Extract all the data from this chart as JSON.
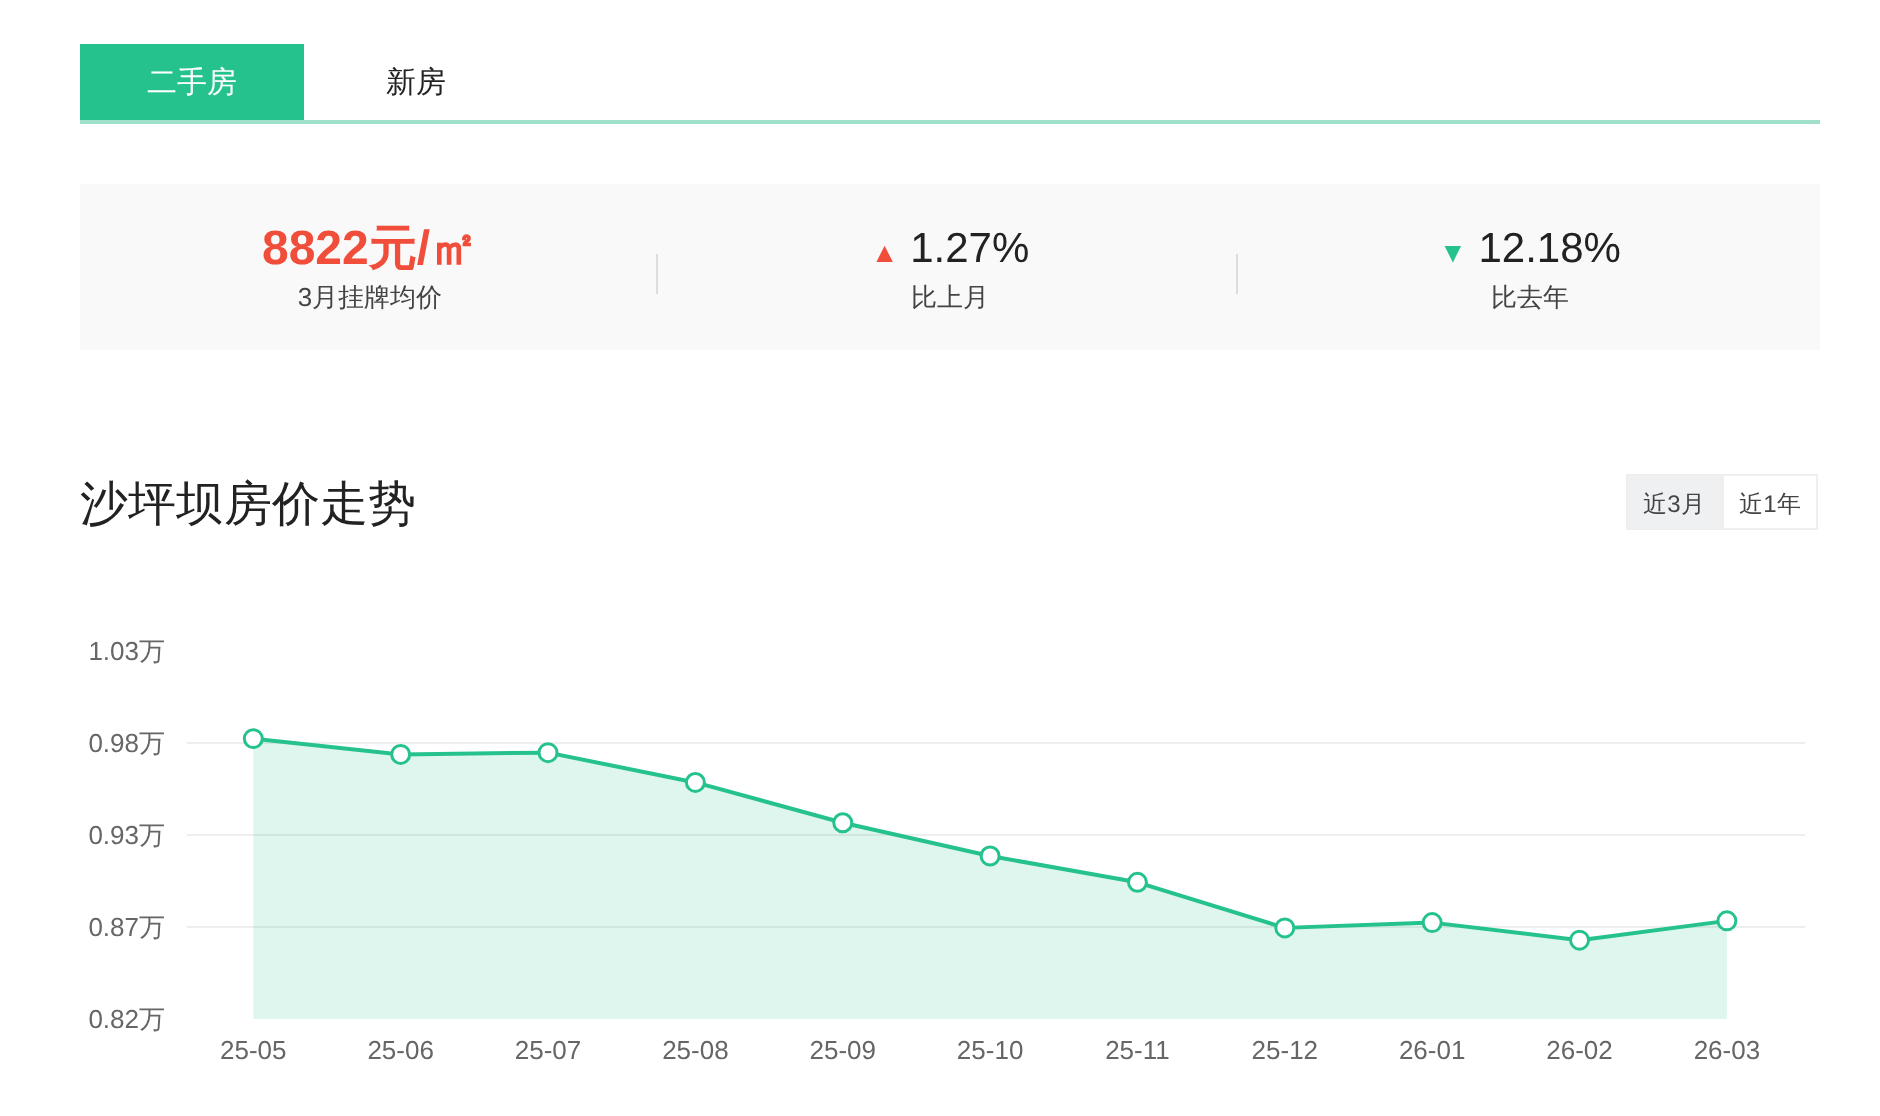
{
  "chart_data": {
    "type": "area",
    "title": "沙坪坝房价走势",
    "annotations": [
      "二手房",
      "新房",
      "8822元/㎡",
      "3月挂牌均价",
      "▲ 1.27%",
      "比上月",
      "▼ 12.18%",
      "比去年",
      "近3月",
      "近1年"
    ],
    "categories": [
      "25-05",
      "25-06",
      "25-07",
      "25-08",
      "25-09",
      "25-10",
      "25-11",
      "25-12",
      "26-01",
      "26-02",
      "26-03"
    ],
    "series": [
      {
        "color": "#26c28e",
        "values": [
          0.98,
          0.971,
          0.972,
          0.955,
          0.932,
          0.913,
          0.898,
          0.872,
          0.875,
          0.865,
          0.876
        ]
      }
    ],
    "ylim": [
      0.82,
      1.03
    ],
    "yticks": [
      {
        "value": 0.82,
        "label": "0.82万"
      },
      {
        "value": 0.8725,
        "label": "0.87万"
      },
      {
        "value": 0.925,
        "label": "0.93万"
      },
      {
        "value": 0.9775,
        "label": "0.98万"
      },
      {
        "value": 1.03,
        "label": "1.03万"
      }
    ],
    "grid": "y",
    "marker": "circle"
  }
}
